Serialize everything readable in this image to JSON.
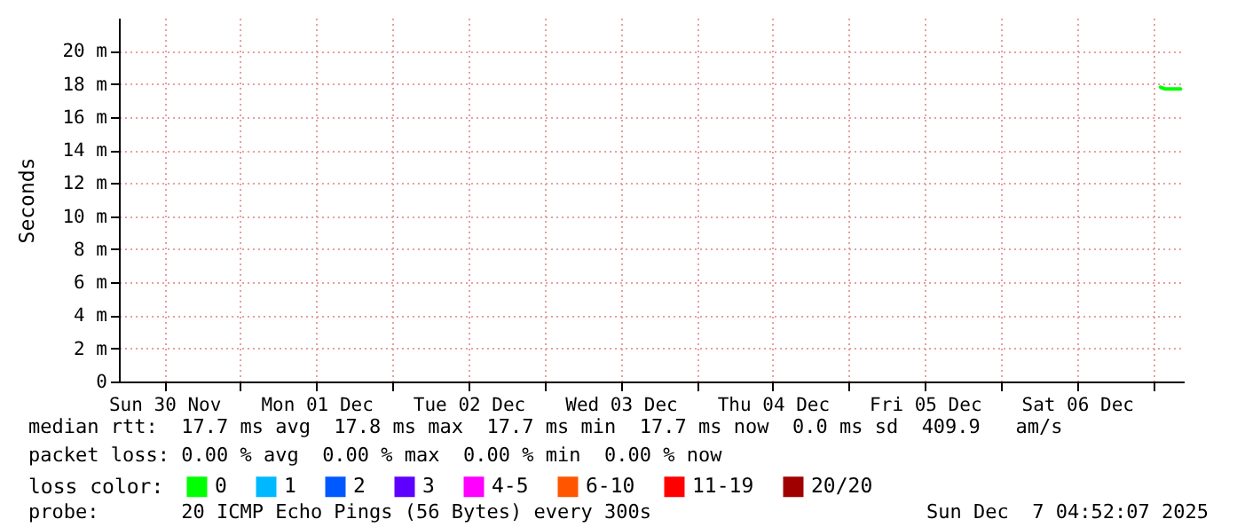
{
  "chart_data": {
    "type": "line",
    "ylabel": "Seconds",
    "legend_title": "loss color:",
    "legend": "bottom",
    "grid": true,
    "line_style": "solid",
    "x": [
      "2025-12-07T01:10",
      "2025-12-07T01:50",
      "2025-12-07T04:20"
    ],
    "series": [
      {
        "name": "0",
        "color": "#00ff00",
        "values": [
          17.8,
          17.7,
          17.7
        ]
      },
      {
        "name": "1",
        "color": "#00b8ff",
        "values": [
          null,
          null,
          null
        ]
      },
      {
        "name": "2",
        "color": "#0059ff",
        "values": [
          null,
          null,
          null
        ]
      },
      {
        "name": "3",
        "color": "#5e00ff",
        "values": [
          null,
          null,
          null
        ]
      },
      {
        "name": "4-5",
        "color": "#ff00ff",
        "values": [
          null,
          null,
          null
        ]
      },
      {
        "name": "6-10",
        "color": "#ff5500",
        "values": [
          null,
          null,
          null
        ]
      },
      {
        "name": "11-19",
        "color": "#ff0000",
        "values": [
          null,
          null,
          null
        ]
      },
      {
        "name": "20/20",
        "color": "#a10000",
        "values": [
          null,
          null,
          null
        ]
      }
    ],
    "xlim": [
      "2025-11-30T04:50",
      "2025-12-07T04:50"
    ],
    "xticks": [
      {
        "value": "2025-11-30T12:00",
        "label": "Sun 30 Nov"
      },
      {
        "value": "2025-12-01T00:00",
        "label": null
      },
      {
        "value": "2025-12-01T12:00",
        "label": "Mon 01 Dec"
      },
      {
        "value": "2025-12-02T00:00",
        "label": null
      },
      {
        "value": "2025-12-02T12:00",
        "label": "Tue 02 Dec"
      },
      {
        "value": "2025-12-03T00:00",
        "label": null
      },
      {
        "value": "2025-12-03T12:00",
        "label": "Wed 03 Dec"
      },
      {
        "value": "2025-12-04T00:00",
        "label": null
      },
      {
        "value": "2025-12-04T12:00",
        "label": "Thu 04 Dec"
      },
      {
        "value": "2025-12-05T00:00",
        "label": null
      },
      {
        "value": "2025-12-05T12:00",
        "label": "Fri 05 Dec"
      },
      {
        "value": "2025-12-06T00:00",
        "label": null
      },
      {
        "value": "2025-12-06T12:00",
        "label": "Sat 06 Dec"
      },
      {
        "value": "2025-12-07T00:00",
        "label": null
      }
    ],
    "ylim": [
      0,
      22
    ],
    "yticks": [
      0,
      {
        "value": 2,
        "label": "2 m"
      },
      {
        "value": 4,
        "label": "4 m"
      },
      {
        "value": 6,
        "label": "6 m"
      },
      {
        "value": 8,
        "label": "8 m"
      },
      {
        "value": 10,
        "label": "10 m"
      },
      {
        "value": 12,
        "label": "12 m"
      },
      {
        "value": 14,
        "label": "14 m"
      },
      {
        "value": 16,
        "label": "16 m"
      },
      {
        "value": 18,
        "label": "18 m"
      },
      {
        "value": 20,
        "label": "20 m"
      }
    ],
    "annotations": [
      "median rtt:  17.7 ms avg  17.8 ms max  17.7 ms min  17.7 ms now  0.0 ms sd  409.9   am/s",
      "packet loss: 0.00 % avg  0.00 % max  0.00 % min  0.00 % now",
      "probe:       20 ICMP Echo Pings (56 Bytes) every 300s",
      "Sun Dec  7 04:52:07 2025"
    ]
  }
}
